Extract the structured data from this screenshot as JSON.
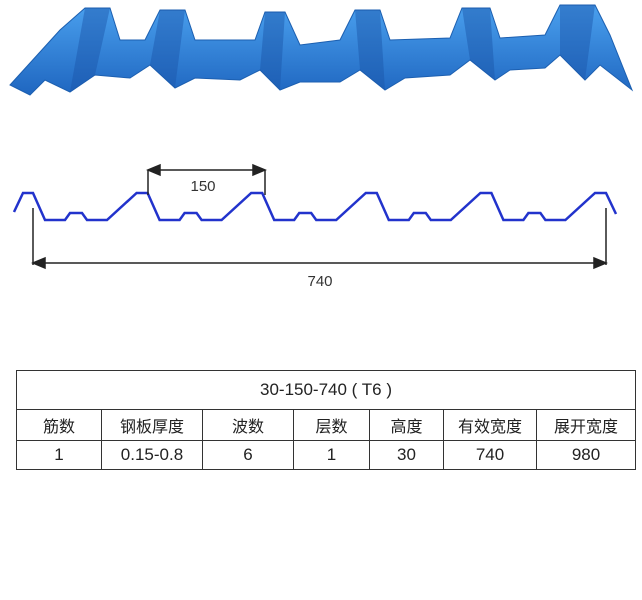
{
  "colors": {
    "sheet": "#2a7fd6",
    "sheet_dark": "#1c5fb0",
    "profile_line": "#2233cc",
    "dimension": "#222222"
  },
  "dimensions": {
    "pitch": "150",
    "cover_width": "740"
  },
  "table": {
    "title": "30-150-740 ( T6 )",
    "headers": [
      "筋数",
      "钢板厚度",
      "波数",
      "层数",
      "高度",
      "有效宽度",
      "展开宽度"
    ],
    "values": [
      "1",
      "0.15-0.8",
      "6",
      "1",
      "30",
      "740",
      "980"
    ]
  }
}
